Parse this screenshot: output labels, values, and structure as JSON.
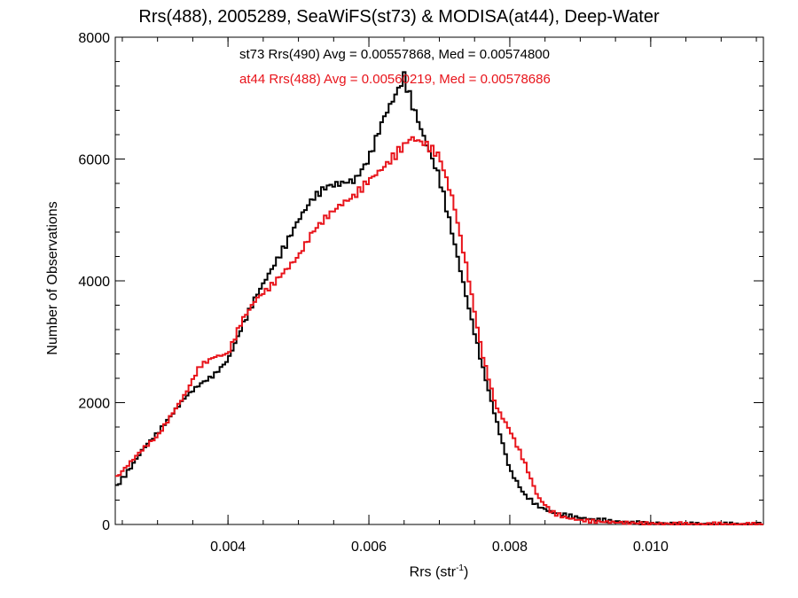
{
  "chart_data": {
    "type": "histogram",
    "title": "Rrs(488), 2005289, SeaWiFS(st73) & MODISA(at44), Deep-Water",
    "xlabel": {
      "prefix": "Rrs (str",
      "sup": "-1",
      "suffix": ")"
    },
    "ylabel": "Number of Observations",
    "xlim": [
      0.0024,
      0.0116
    ],
    "ylim": [
      0,
      8000
    ],
    "x_ticks": [
      0.004,
      0.006,
      0.008,
      0.01
    ],
    "x_tick_labels": [
      "0.004",
      "0.006",
      "0.008",
      "0.010"
    ],
    "x_minor_step": 0.0005,
    "y_ticks": [
      0,
      2000,
      4000,
      6000,
      8000
    ],
    "y_tick_labels": [
      "0",
      "2000",
      "4000",
      "6000",
      "8000"
    ],
    "y_minor_step": 400,
    "grid": false,
    "annotations": [
      "st73 Rrs(490) Avg = 0.00557868, Med = 0.00574800",
      "at44 Rrs(488) Avg = 0.00560219, Med = 0.00578686"
    ],
    "series": [
      {
        "name": "st73",
        "color": "#000000",
        "points": [
          [
            0.0024,
            600
          ],
          [
            0.0026,
            900
          ],
          [
            0.0028,
            1250
          ],
          [
            0.003,
            1500
          ],
          [
            0.0032,
            1800
          ],
          [
            0.0034,
            2100
          ],
          [
            0.0036,
            2300
          ],
          [
            0.0038,
            2450
          ],
          [
            0.004,
            2700
          ],
          [
            0.0042,
            3250
          ],
          [
            0.0044,
            3750
          ],
          [
            0.0046,
            4150
          ],
          [
            0.0048,
            4550
          ],
          [
            0.005,
            5000
          ],
          [
            0.0052,
            5350
          ],
          [
            0.0054,
            5550
          ],
          [
            0.0056,
            5600
          ],
          [
            0.0058,
            5650
          ],
          [
            0.006,
            6000
          ],
          [
            0.0062,
            6650
          ],
          [
            0.0064,
            7100
          ],
          [
            0.0065,
            7350
          ],
          [
            0.0066,
            6950
          ],
          [
            0.0068,
            6300
          ],
          [
            0.007,
            5700
          ],
          [
            0.0072,
            4700
          ],
          [
            0.0074,
            3650
          ],
          [
            0.0076,
            2650
          ],
          [
            0.0078,
            1750
          ],
          [
            0.008,
            900
          ],
          [
            0.0082,
            500
          ],
          [
            0.0084,
            300
          ],
          [
            0.0086,
            200
          ],
          [
            0.0088,
            150
          ],
          [
            0.009,
            110
          ],
          [
            0.0092,
            80
          ],
          [
            0.0094,
            60
          ],
          [
            0.0096,
            40
          ],
          [
            0.01,
            20
          ],
          [
            0.0105,
            10
          ],
          [
            0.011,
            5
          ],
          [
            0.0116,
            2
          ]
        ]
      },
      {
        "name": "at44",
        "color": "#e8141b",
        "points": [
          [
            0.0024,
            750
          ],
          [
            0.0026,
            1000
          ],
          [
            0.0028,
            1250
          ],
          [
            0.003,
            1450
          ],
          [
            0.0032,
            1800
          ],
          [
            0.0034,
            2150
          ],
          [
            0.0036,
            2600
          ],
          [
            0.0038,
            2750
          ],
          [
            0.004,
            2800
          ],
          [
            0.0042,
            3350
          ],
          [
            0.0044,
            3700
          ],
          [
            0.0046,
            3900
          ],
          [
            0.0048,
            4150
          ],
          [
            0.005,
            4400
          ],
          [
            0.0052,
            4800
          ],
          [
            0.0054,
            5050
          ],
          [
            0.0056,
            5250
          ],
          [
            0.0058,
            5400
          ],
          [
            0.006,
            5650
          ],
          [
            0.0062,
            5850
          ],
          [
            0.0064,
            6100
          ],
          [
            0.0066,
            6350
          ],
          [
            0.0068,
            6250
          ],
          [
            0.007,
            6050
          ],
          [
            0.0072,
            5300
          ],
          [
            0.0074,
            4150
          ],
          [
            0.0076,
            2850
          ],
          [
            0.0078,
            1950
          ],
          [
            0.008,
            1550
          ],
          [
            0.0082,
            1050
          ],
          [
            0.0084,
            450
          ],
          [
            0.0086,
            200
          ],
          [
            0.0088,
            110
          ],
          [
            0.009,
            70
          ],
          [
            0.0092,
            50
          ],
          [
            0.0094,
            40
          ],
          [
            0.0096,
            30
          ],
          [
            0.01,
            15
          ],
          [
            0.0105,
            8
          ],
          [
            0.011,
            4
          ],
          [
            0.0116,
            2
          ]
        ]
      }
    ]
  }
}
